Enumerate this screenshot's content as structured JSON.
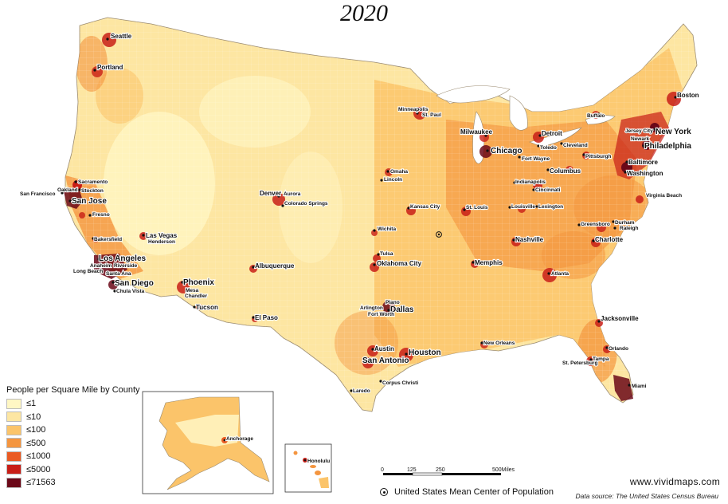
{
  "title": "2020",
  "legend": {
    "title": "People per Square Mile by County",
    "items": [
      {
        "label": "≤1",
        "color": "#fff7c4"
      },
      {
        "label": "≤10",
        "color": "#fde6a2"
      },
      {
        "label": "≤100",
        "color": "#fbc46a"
      },
      {
        "label": "≤500",
        "color": "#f4953f"
      },
      {
        "label": "≤1000",
        "color": "#ea5a22"
      },
      {
        "label": "≤5000",
        "color": "#c81e17"
      },
      {
        "label": "≤71563",
        "color": "#6b0818"
      }
    ]
  },
  "scale": {
    "ticks": [
      "0",
      "125",
      "250",
      "500Miles"
    ]
  },
  "mean_center_label": "United States Mean Center of Population",
  "website": "www.vividmaps.com",
  "source": "Data source: The United States Census Bureau",
  "cities": [
    "Seattle",
    "Portland",
    "Minneapolis",
    "St. Paul",
    "Boston",
    "Buffalo",
    "Milwaukee",
    "Detroit",
    "Chicago",
    "Toledo",
    "Cleveland",
    "Jersey City",
    "New York",
    "Newark",
    "Philadelphia",
    "Pittsburgh",
    "Fort Wayne",
    "Columbus",
    "Baltimore",
    "Washington",
    "Omaha",
    "Lincoln",
    "Indianapolis",
    "Cincinnati",
    "Virginia Beach",
    "San Francisco",
    "Oakland",
    "Stockton",
    "Sacramento",
    "San Jose",
    "Fresno",
    "Denver",
    "Aurora",
    "Colorado Springs",
    "Kansas City",
    "St. Louis",
    "Louisville",
    "Lexington",
    "Greensboro",
    "Durham",
    "Raleigh",
    "Wichita",
    "Nashville",
    "Charlotte",
    "Bakersfield",
    "Las Vegas",
    "Henderson",
    "Tulsa",
    "Los Angeles",
    "Anaheim",
    "Riverside",
    "Long Beach",
    "Santa Ana",
    "Albuquerque",
    "Oklahoma City",
    "Memphis",
    "Atlanta",
    "San Diego",
    "Chula Vista",
    "Phoenix",
    "Mesa",
    "Chandler",
    "Tucson",
    "Arlington",
    "Plano",
    "Dallas",
    "Fort Worth",
    "El Paso",
    "Jacksonville",
    "Austin",
    "New Orleans",
    "Houston",
    "Orlando",
    "San Antonio",
    "Tampa",
    "St. Petersburg",
    "Corpus Christi",
    "Laredo",
    "Miami",
    "Anchorage",
    "Honolulu"
  ]
}
